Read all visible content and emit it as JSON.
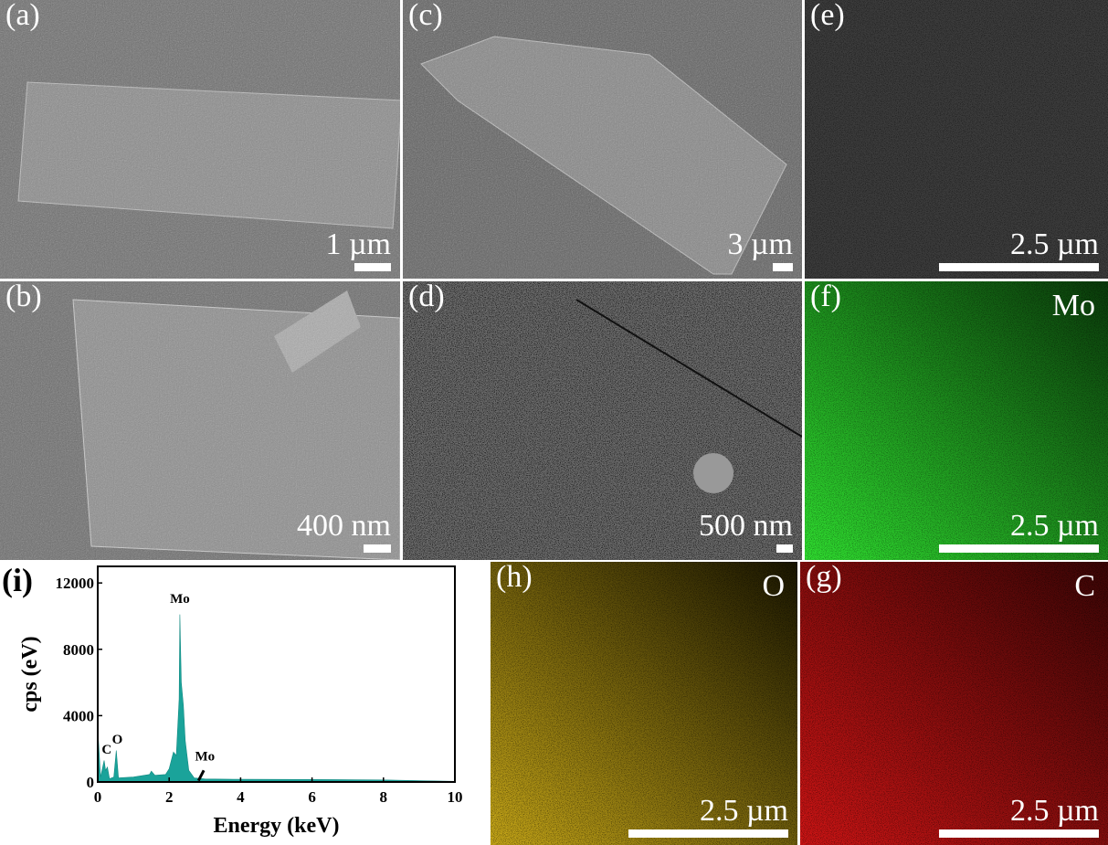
{
  "panels": {
    "a": {
      "label": "(a)",
      "scale": "1 µm"
    },
    "b": {
      "label": "(b)",
      "scale": "400 nm"
    },
    "c": {
      "label": "(c)",
      "scale": "3 µm"
    },
    "d": {
      "label": "(d)",
      "scale": "500 nm"
    },
    "e": {
      "label": "(e)",
      "scale": "2.5 µm"
    },
    "f": {
      "label": "(f)",
      "element": "Mo",
      "scale": "2.5 µm",
      "color": "#22c81e"
    },
    "h": {
      "label": "(h)",
      "element": "O",
      "scale": "2.5 µm",
      "color": "#d8b820"
    },
    "g": {
      "label": "(g)",
      "element": "C",
      "scale": "2.5 µm",
      "color": "#e01818"
    }
  },
  "chart_label": "(i)",
  "chart_data": {
    "type": "area",
    "xlabel": "Energy (keV)",
    "ylabel": "cps (eV)",
    "xlim": [
      0,
      10
    ],
    "ylim": [
      0,
      13000
    ],
    "xticks": [
      0,
      2,
      4,
      6,
      8,
      10
    ],
    "yticks": [
      0,
      4000,
      8000,
      12000
    ],
    "color": "#1aa39a",
    "points": [
      [
        0,
        0
      ],
      [
        0.02,
        2500
      ],
      [
        0.08,
        300
      ],
      [
        0.18,
        1300
      ],
      [
        0.22,
        700
      ],
      [
        0.27,
        900
      ],
      [
        0.33,
        200
      ],
      [
        0.45,
        300
      ],
      [
        0.52,
        1900
      ],
      [
        0.58,
        250
      ],
      [
        1.0,
        300
      ],
      [
        1.45,
        450
      ],
      [
        1.5,
        650
      ],
      [
        1.6,
        400
      ],
      [
        1.9,
        450
      ],
      [
        2.0,
        800
      ],
      [
        2.12,
        1800
      ],
      [
        2.2,
        1600
      ],
      [
        2.28,
        5000
      ],
      [
        2.3,
        10100
      ],
      [
        2.34,
        6000
      ],
      [
        2.4,
        4600
      ],
      [
        2.45,
        2500
      ],
      [
        2.55,
        700
      ],
      [
        2.7,
        250
      ],
      [
        3,
        180
      ],
      [
        4,
        160
      ],
      [
        6,
        150
      ],
      [
        8,
        120
      ],
      [
        9,
        80
      ],
      [
        10,
        40
      ]
    ],
    "annotations": [
      {
        "text": "Mo",
        "x": 2.3,
        "y": 10800
      },
      {
        "text": "C",
        "x": 0.25,
        "y": 1700
      },
      {
        "text": "O",
        "x": 0.55,
        "y": 2300
      },
      {
        "text": "Mo",
        "x": 3.0,
        "y": 1300
      }
    ]
  }
}
